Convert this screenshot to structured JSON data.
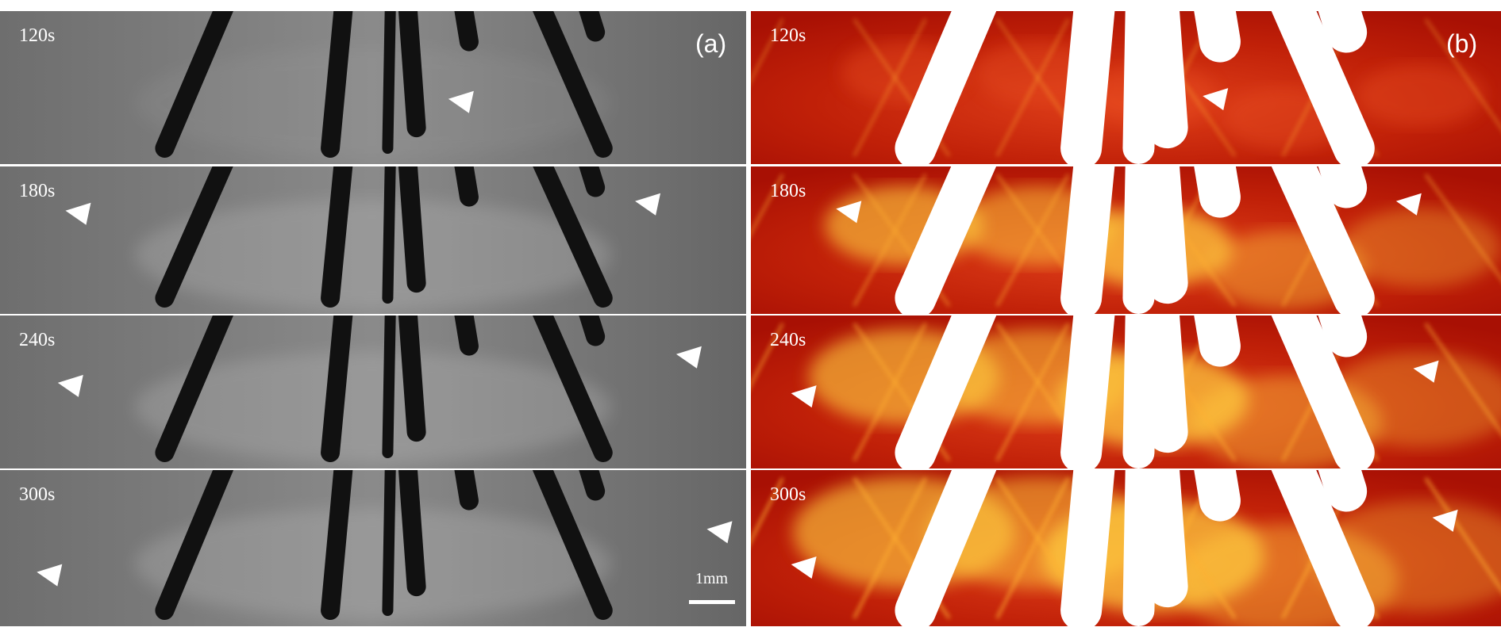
{
  "panels": [
    {
      "label": "(a)",
      "rows": [
        "120s",
        "180s",
        "240s",
        "300s"
      ],
      "scale_bar": "1mm"
    },
    {
      "label": "(b)",
      "rows": [
        "120s",
        "180s",
        "240s",
        "300s"
      ]
    }
  ]
}
